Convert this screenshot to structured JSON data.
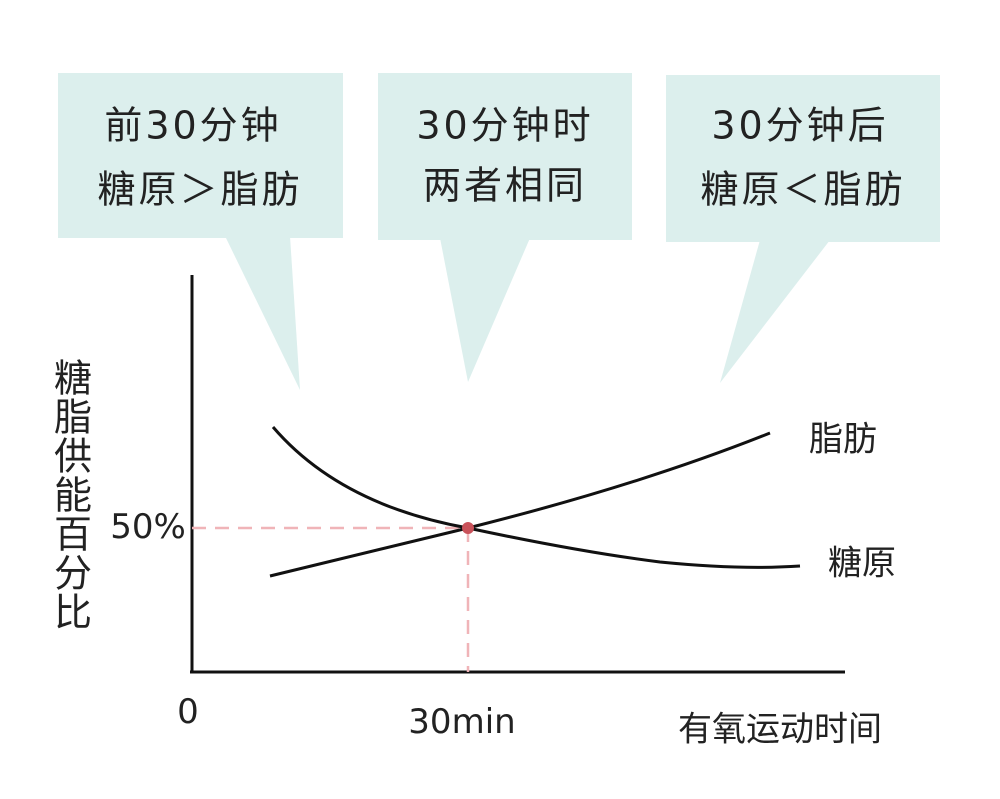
{
  "callouts": [
    {
      "lines": [
        "前30分钟",
        "糖原＞脂肪"
      ]
    },
    {
      "lines": [
        "30分钟时",
        "两者相同"
      ]
    },
    {
      "lines": [
        "30分钟后",
        "糖原＜脂肪"
      ]
    }
  ],
  "y_axis_label": "糖脂供能百分比",
  "x_axis_label": "有氧运动时间",
  "origin_label": "0",
  "x_marker_label": "30min",
  "y_marker_label": "50%",
  "curve_labels": {
    "fat": "脂肪",
    "glycogen": "糖原"
  }
}
